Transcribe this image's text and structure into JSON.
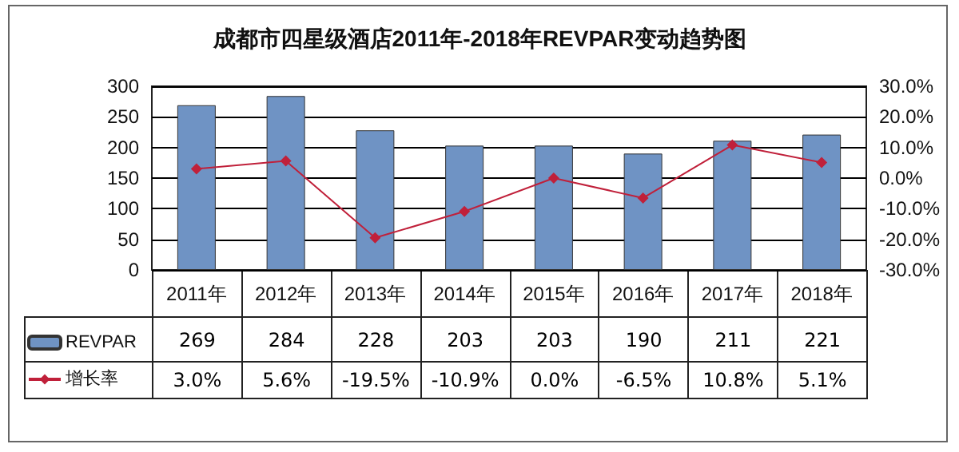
{
  "chart_data": {
    "type": "bar",
    "title": "成都市四星级酒店2011年-2018年REVPAR变动趋势图",
    "categories": [
      "2011年",
      "2012年",
      "2013年",
      "2014年",
      "2015年",
      "2016年",
      "2017年",
      "2018年"
    ],
    "series": [
      {
        "name": "REVPAR",
        "color": "#6f93c4",
        "values": [
          269,
          284,
          228,
          203,
          203,
          190,
          211,
          221
        ],
        "value_labels": [
          "269",
          "284",
          "228",
          "203",
          "203",
          "190",
          "211",
          "221"
        ]
      },
      {
        "name": "增长率",
        "type": "line",
        "axis": "y2",
        "color": "#c0203a",
        "marker": "diamond",
        "values": [
          3.0,
          5.6,
          -19.5,
          -10.9,
          0.0,
          -6.5,
          10.8,
          5.1
        ],
        "value_labels": [
          "3.0%",
          "5.6%",
          "-19.5%",
          "-10.9%",
          "0.0%",
          "-6.5%",
          "10.8%",
          "5.1%"
        ]
      }
    ],
    "ylim": [
      0,
      300
    ],
    "yticks": [
      0,
      50,
      100,
      150,
      200,
      250,
      300
    ],
    "y2lim": [
      -30,
      30
    ],
    "y2ticks": [
      {
        "value": -30,
        "label": "-30.0%"
      },
      {
        "value": -20,
        "label": "-20.0%"
      },
      {
        "value": -10,
        "label": "-10.0%"
      },
      {
        "value": 0,
        "label": "0.0%"
      },
      {
        "value": 10,
        "label": "10.0%"
      },
      {
        "value": 20,
        "label": "20.0%"
      },
      {
        "value": 30,
        "label": "30.0%"
      }
    ],
    "grid": "y",
    "legend": "bottom left"
  }
}
